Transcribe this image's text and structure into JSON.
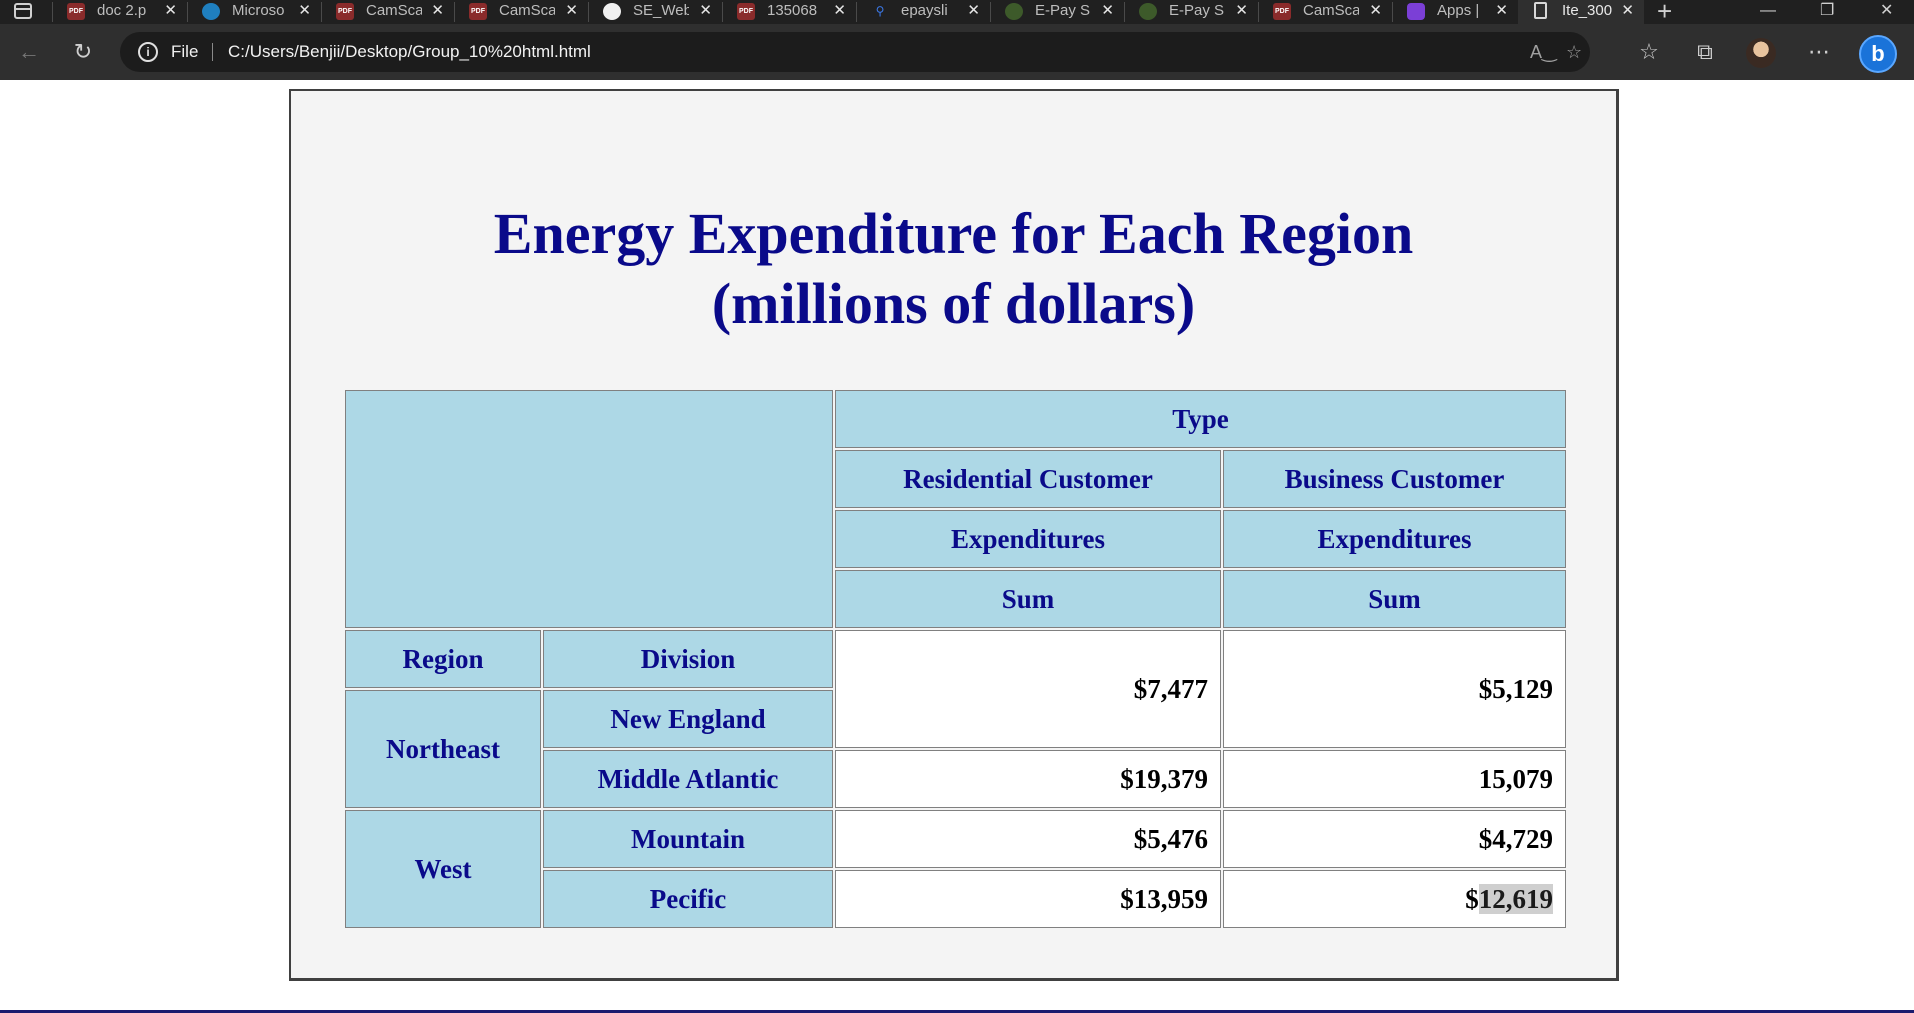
{
  "browser": {
    "tabs": [
      {
        "title": "doc 2.p",
        "icon": "pdf-icon"
      },
      {
        "title": "Microso",
        "icon": "edge-icon"
      },
      {
        "title": "CamSca",
        "icon": "pdf-icon"
      },
      {
        "title": "CamSca",
        "icon": "pdf-icon"
      },
      {
        "title": "SE_Web",
        "icon": "github-icon"
      },
      {
        "title": "135068",
        "icon": "pdf-icon"
      },
      {
        "title": "epaysli",
        "icon": "search-icon"
      },
      {
        "title": "E-Pay Sl",
        "icon": "site-icon"
      },
      {
        "title": "E-Pay Sl",
        "icon": "site-icon"
      },
      {
        "title": "CamSca",
        "icon": "pdf-icon"
      },
      {
        "title": "Apps | ",
        "icon": "apps-icon"
      },
      {
        "title": "Ite_300",
        "icon": "file-icon"
      }
    ],
    "address": {
      "scheme_label": "File",
      "url": "C:/Users/Benjii/Desktop/Group_10%20html.html"
    }
  },
  "report": {
    "title_line1": "Energy Expenditure for Each Region",
    "title_line2": "(millions of dollars)",
    "header": {
      "type": "Type",
      "residential": "Residential Customer",
      "business": "Business Customer",
      "expenditures": "Expenditures",
      "sum": "Sum",
      "region": "Region",
      "division": "Division"
    },
    "regions": [
      {
        "name": "Northeast",
        "divisions": [
          {
            "name": "New England",
            "residential": "$7,477",
            "business": "$5,129"
          },
          {
            "name": "Middle Atlantic",
            "residential": "$19,379",
            "business": "15,079"
          }
        ]
      },
      {
        "name": "West",
        "divisions": [
          {
            "name": "Mountain",
            "residential": "$5,476",
            "business": "$4,729"
          },
          {
            "name": "Pecific",
            "residential": "$13,959",
            "business_prefix": "$",
            "business_selected": "12,619"
          }
        ]
      }
    ]
  }
}
